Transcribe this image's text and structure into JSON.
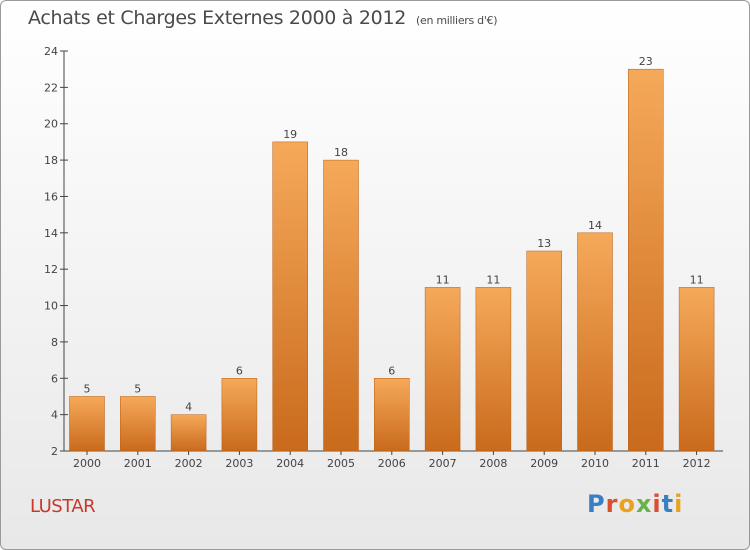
{
  "header": {
    "title": "Achats et Charges Externes 2000 à 2012",
    "unit": "(en milliers d'€)"
  },
  "footer": {
    "commune": "LUSTAR",
    "logo": "Proxiti",
    "logo_colors": [
      "#3a7fc4",
      "#d94f2f",
      "#e8a21c",
      "#6ab04c",
      "#d94f2f",
      "#3a7fc4",
      "#e8a21c"
    ]
  },
  "colors": {
    "bar_top": "#f6a95a",
    "bar_bottom": "#c96a1c",
    "axis": "#444444",
    "text": "#444444",
    "commune": "#c8392b"
  },
  "chart_data": {
    "type": "bar",
    "title": "Achats et Charges Externes 2000 à 2012",
    "xlabel": "",
    "ylabel": "",
    "categories": [
      "2000",
      "2001",
      "2002",
      "2003",
      "2004",
      "2005",
      "2006",
      "2007",
      "2008",
      "2009",
      "2010",
      "2011",
      "2012"
    ],
    "values": [
      5,
      5,
      4,
      6,
      19,
      18,
      6,
      11,
      11,
      13,
      14,
      23,
      11
    ],
    "ylim": [
      2,
      24
    ],
    "yticks": [
      2,
      4,
      6,
      8,
      10,
      12,
      14,
      16,
      18,
      20,
      22,
      24
    ],
    "grid": false,
    "legend": "none"
  }
}
